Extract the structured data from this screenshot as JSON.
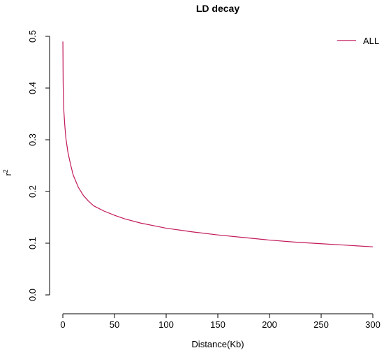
{
  "chart_data": {
    "type": "line",
    "title": "LD decay",
    "xlabel": "Distance(Kb)",
    "ylabel": "r",
    "ylabel_superscript": "2",
    "xlim": [
      0,
      300
    ],
    "ylim": [
      0,
      0.5
    ],
    "x_ticks": [
      "0",
      "50",
      "100",
      "150",
      "200",
      "250",
      "300"
    ],
    "y_ticks": [
      "0.0",
      "0.1",
      "0.2",
      "0.3",
      "0.4",
      "0.5"
    ],
    "grid": false,
    "legend_position": "top-right",
    "series": [
      {
        "name": "ALL",
        "color": "#c2185b",
        "x": [
          0.05,
          0.3,
          0.6,
          1,
          2,
          3,
          5,
          7.5,
          10,
          15,
          20,
          25,
          30,
          40,
          50,
          60,
          75,
          90,
          100,
          125,
          150,
          175,
          200,
          225,
          250,
          275,
          300
        ],
        "y": [
          0.49,
          0.41,
          0.38,
          0.355,
          0.325,
          0.302,
          0.275,
          0.252,
          0.232,
          0.208,
          0.192,
          0.181,
          0.172,
          0.162,
          0.154,
          0.147,
          0.139,
          0.133,
          0.129,
          0.122,
          0.116,
          0.111,
          0.106,
          0.102,
          0.099,
          0.096,
          0.093
        ]
      }
    ]
  }
}
